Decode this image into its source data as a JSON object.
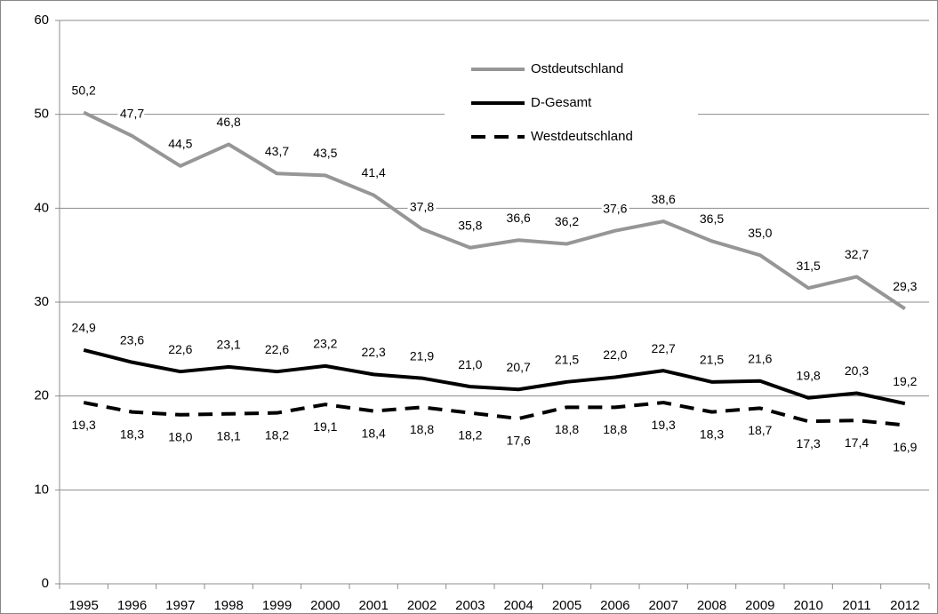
{
  "chart_data": {
    "type": "line",
    "categories": [
      "1995",
      "1996",
      "1997",
      "1998",
      "1999",
      "2000",
      "2001",
      "2002",
      "2003",
      "2004",
      "2005",
      "2006",
      "2007",
      "2008",
      "2009",
      "2010",
      "2011",
      "2012"
    ],
    "series": [
      {
        "name": "Ostdeutschland",
        "color": "#969696",
        "dash": false,
        "values": [
          50.2,
          47.7,
          44.5,
          46.8,
          43.7,
          43.5,
          41.4,
          37.8,
          35.8,
          36.6,
          36.2,
          37.6,
          38.6,
          36.5,
          35.0,
          31.5,
          32.7,
          29.3
        ],
        "value_labels": [
          "50,2",
          "47,7",
          "44,5",
          "46,8",
          "43,7",
          "43,5",
          "41,4",
          "37,8",
          "35,8",
          "36,6",
          "36,2",
          "37,6",
          "38,6",
          "36,5",
          "35,0",
          "31,5",
          "32,7",
          "29,3"
        ]
      },
      {
        "name": "D-Gesamt",
        "color": "#000000",
        "dash": false,
        "values": [
          24.9,
          23.6,
          22.6,
          23.1,
          22.6,
          23.2,
          22.3,
          21.9,
          21.0,
          20.7,
          21.5,
          22.0,
          22.7,
          21.5,
          21.6,
          19.8,
          20.3,
          19.2
        ],
        "value_labels": [
          "24,9",
          "23,6",
          "22,6",
          "23,1",
          "22,6",
          "23,2",
          "22,3",
          "21,9",
          "21,0",
          "20,7",
          "21,5",
          "22,0",
          "22,7",
          "21,5",
          "21,6",
          "19,8",
          "20,3",
          "19,2"
        ]
      },
      {
        "name": "Westdeutschland",
        "color": "#000000",
        "dash": true,
        "values": [
          19.3,
          18.3,
          18.0,
          18.1,
          18.2,
          19.1,
          18.4,
          18.8,
          18.2,
          17.6,
          18.8,
          18.8,
          19.3,
          18.3,
          18.7,
          17.3,
          17.4,
          16.9
        ],
        "value_labels": [
          "19,3",
          "18,3",
          "18,0",
          "18,1",
          "18,2",
          "19,1",
          "18,4",
          "18,8",
          "18,2",
          "17,6",
          "18,8",
          "18,8",
          "19,3",
          "18,3",
          "18,7",
          "17,3",
          "17,4",
          "16,9"
        ]
      }
    ],
    "ylim": [
      0,
      60
    ],
    "yticks": [
      0,
      10,
      20,
      30,
      40,
      50,
      60
    ],
    "grid": true
  }
}
